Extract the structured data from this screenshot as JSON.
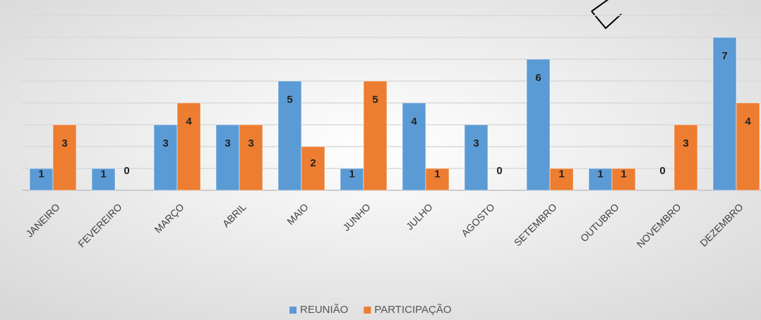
{
  "chart_data": {
    "type": "bar",
    "categories": [
      "JANEIRO",
      "FEVEREIRO",
      "MARÇO",
      "ABRIL",
      "MAIO",
      "JUNHO",
      "JULHO",
      "AGOSTO",
      "SETEMBRO",
      "OUTUBRO",
      "NOVEMBRO",
      "DEZEMBRO"
    ],
    "series": [
      {
        "name": "REUNIÃO",
        "color": "#5b9bd5",
        "values": [
          1,
          1,
          3,
          3,
          5,
          1,
          4,
          3,
          6,
          1,
          0,
          7
        ]
      },
      {
        "name": "PARTICIPAÇÃO",
        "color": "#ed7d31",
        "values": [
          3,
          0,
          4,
          3,
          2,
          5,
          1,
          0,
          1,
          1,
          3,
          4
        ]
      }
    ],
    "ylim": [
      0,
      8
    ],
    "yticks": [
      0,
      1,
      2,
      3,
      4,
      5,
      6,
      7,
      8
    ],
    "grid": true,
    "legend": "bottom"
  }
}
